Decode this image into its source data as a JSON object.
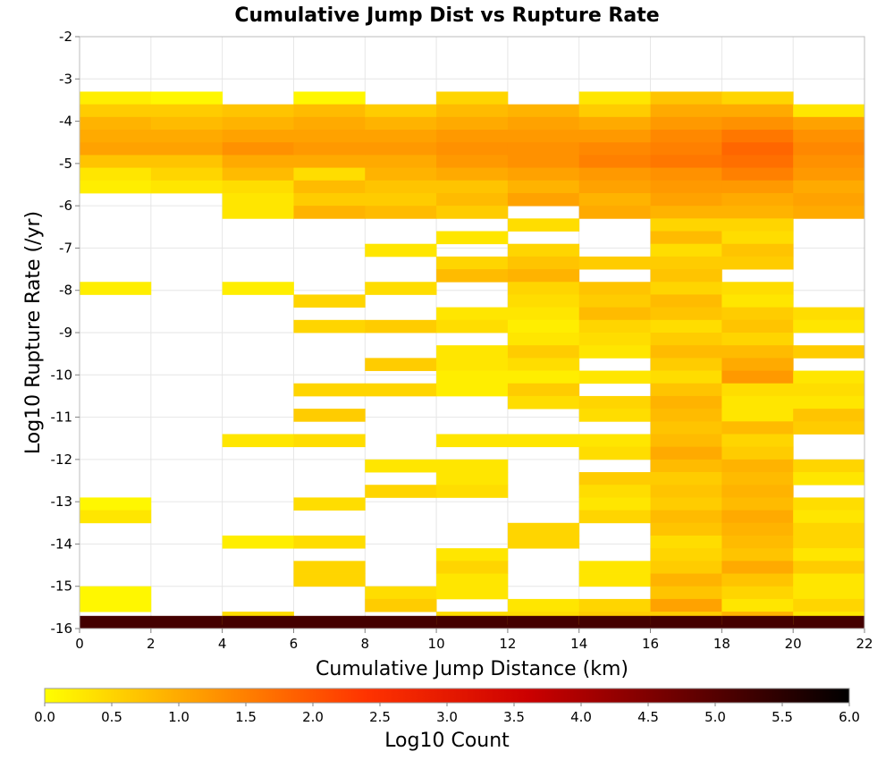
{
  "chart_data": {
    "type": "heatmap",
    "title": "Cumulative Jump Dist vs Rupture Rate",
    "xlabel": "Cumulative Jump Distance (km)",
    "ylabel": "Log10 Rupture Rate (/yr)",
    "xlim": [
      0,
      22
    ],
    "ylim": [
      -16,
      -2
    ],
    "x_ticks": [
      "0",
      "2",
      "4",
      "6",
      "8",
      "10",
      "12",
      "14",
      "16",
      "18",
      "20",
      "22"
    ],
    "y_ticks": [
      "-2",
      "-3",
      "-4",
      "-5",
      "-6",
      "-7",
      "-8",
      "-9",
      "-10",
      "-11",
      "-12",
      "-13",
      "-14",
      "-15",
      "-16"
    ],
    "grid": true,
    "x_bin_width": 2,
    "y_bin_height": 0.3,
    "colorbar": {
      "label": "Log10 Count",
      "range": [
        0,
        6
      ],
      "ticks": [
        "0.0",
        "0.5",
        "1.0",
        "1.5",
        "2.0",
        "2.5",
        "3.0",
        "3.5",
        "4.0",
        "4.5",
        "5.0",
        "5.5",
        "6.0"
      ],
      "colors": [
        "#ffff00",
        "#ff9900",
        "#ff3300",
        "#cc0000",
        "#660000",
        "#000000"
      ],
      "placement": "bottom"
    },
    "cells_note": "each row: x bin start (km), then list of [y bin bottom, log10 count]",
    "cells": [
      {
        "x": 0,
        "bins": [
          [
            -3.6,
            0.2
          ],
          [
            -3.9,
            0.6
          ],
          [
            -4.2,
            0.9
          ],
          [
            -4.5,
            1.0
          ],
          [
            -4.8,
            1.1
          ],
          [
            -5.1,
            0.7
          ],
          [
            -5.4,
            0.3
          ],
          [
            -5.7,
            0.2
          ],
          [
            -8.1,
            0.2
          ],
          [
            -13.2,
            0.1
          ],
          [
            -13.5,
            0.3
          ],
          [
            -15.3,
            0.1
          ],
          [
            -15.6,
            0.1
          ],
          [
            -16.0,
            5.2
          ]
        ]
      },
      {
        "x": 2,
        "bins": [
          [
            -3.6,
            0.1
          ],
          [
            -3.9,
            0.6
          ],
          [
            -4.2,
            0.8
          ],
          [
            -4.5,
            1.0
          ],
          [
            -4.8,
            1.1
          ],
          [
            -5.1,
            0.7
          ],
          [
            -5.4,
            0.5
          ],
          [
            -5.7,
            0.3
          ],
          [
            -16.0,
            5.2
          ]
        ]
      },
      {
        "x": 4,
        "bins": [
          [
            -3.9,
            0.7
          ],
          [
            -4.2,
            0.9
          ],
          [
            -4.5,
            1.1
          ],
          [
            -4.8,
            1.3
          ],
          [
            -5.1,
            1.0
          ],
          [
            -5.4,
            0.8
          ],
          [
            -5.7,
            0.4
          ],
          [
            -6.0,
            0.3
          ],
          [
            -6.3,
            0.3
          ],
          [
            -8.1,
            0.2
          ],
          [
            -11.7,
            0.3
          ],
          [
            -14.1,
            0.2
          ],
          [
            -15.9,
            0.4
          ],
          [
            -16.0,
            5.2
          ]
        ]
      },
      {
        "x": 6,
        "bins": [
          [
            -3.6,
            0.1
          ],
          [
            -3.9,
            0.8
          ],
          [
            -4.2,
            1.0
          ],
          [
            -4.5,
            1.1
          ],
          [
            -4.8,
            1.2
          ],
          [
            -5.1,
            1.0
          ],
          [
            -5.4,
            0.4
          ],
          [
            -5.7,
            0.8
          ],
          [
            -6.0,
            0.6
          ],
          [
            -6.3,
            0.9
          ],
          [
            -8.4,
            0.5
          ],
          [
            -9.0,
            0.5
          ],
          [
            -10.5,
            0.5
          ],
          [
            -11.1,
            0.6
          ],
          [
            -11.7,
            0.4
          ],
          [
            -13.2,
            0.4
          ],
          [
            -14.1,
            0.4
          ],
          [
            -14.7,
            0.5
          ],
          [
            -15.0,
            0.5
          ],
          [
            -16.0,
            5.2
          ]
        ]
      },
      {
        "x": 8,
        "bins": [
          [
            -3.9,
            0.6
          ],
          [
            -4.2,
            0.9
          ],
          [
            -4.5,
            1.1
          ],
          [
            -4.8,
            1.2
          ],
          [
            -5.1,
            1.0
          ],
          [
            -5.4,
            0.9
          ],
          [
            -5.7,
            0.7
          ],
          [
            -6.0,
            0.6
          ],
          [
            -6.3,
            0.8
          ],
          [
            -7.2,
            0.3
          ],
          [
            -8.1,
            0.4
          ],
          [
            -9.0,
            0.6
          ],
          [
            -9.9,
            0.6
          ],
          [
            -10.5,
            0.5
          ],
          [
            -12.3,
            0.3
          ],
          [
            -12.9,
            0.5
          ],
          [
            -15.3,
            0.4
          ],
          [
            -15.6,
            0.6
          ],
          [
            -16.0,
            5.2
          ]
        ]
      },
      {
        "x": 10,
        "bins": [
          [
            -3.6,
            0.5
          ],
          [
            -3.9,
            0.8
          ],
          [
            -4.2,
            1.0
          ],
          [
            -4.5,
            1.2
          ],
          [
            -4.8,
            1.3
          ],
          [
            -5.1,
            1.2
          ],
          [
            -5.4,
            1.0
          ],
          [
            -5.7,
            0.7
          ],
          [
            -6.0,
            0.8
          ],
          [
            -6.3,
            0.6
          ],
          [
            -6.9,
            0.3
          ],
          [
            -7.5,
            0.5
          ],
          [
            -7.8,
            0.8
          ],
          [
            -8.7,
            0.3
          ],
          [
            -9.0,
            0.4
          ],
          [
            -9.6,
            0.3
          ],
          [
            -9.9,
            0.3
          ],
          [
            -10.2,
            0.2
          ],
          [
            -10.5,
            0.2
          ],
          [
            -11.7,
            0.3
          ],
          [
            -12.3,
            0.3
          ],
          [
            -12.6,
            0.3
          ],
          [
            -12.9,
            0.4
          ],
          [
            -14.4,
            0.3
          ],
          [
            -14.7,
            0.5
          ],
          [
            -15.0,
            0.3
          ],
          [
            -15.3,
            0.3
          ],
          [
            -15.9,
            0.4
          ],
          [
            -16.0,
            5.2
          ]
        ]
      },
      {
        "x": 12,
        "bins": [
          [
            -3.9,
            0.9
          ],
          [
            -4.2,
            1.1
          ],
          [
            -4.5,
            1.2
          ],
          [
            -4.8,
            1.3
          ],
          [
            -5.1,
            1.3
          ],
          [
            -5.4,
            1.1
          ],
          [
            -5.7,
            0.9
          ],
          [
            -6.0,
            1.1
          ],
          [
            -6.6,
            0.4
          ],
          [
            -7.2,
            0.5
          ],
          [
            -7.5,
            0.7
          ],
          [
            -7.8,
            0.9
          ],
          [
            -8.1,
            0.5
          ],
          [
            -8.4,
            0.4
          ],
          [
            -8.7,
            0.3
          ],
          [
            -9.0,
            0.2
          ],
          [
            -9.3,
            0.3
          ],
          [
            -9.6,
            0.6
          ],
          [
            -9.9,
            0.4
          ],
          [
            -10.2,
            0.2
          ],
          [
            -10.5,
            0.6
          ],
          [
            -10.8,
            0.4
          ],
          [
            -11.7,
            0.3
          ],
          [
            -13.8,
            0.5
          ],
          [
            -14.1,
            0.5
          ],
          [
            -15.6,
            0.3
          ],
          [
            -15.9,
            0.4
          ],
          [
            -16.0,
            5.2
          ]
        ]
      },
      {
        "x": 14,
        "bins": [
          [
            -3.6,
            0.3
          ],
          [
            -3.9,
            0.6
          ],
          [
            -4.2,
            1.0
          ],
          [
            -4.5,
            1.2
          ],
          [
            -4.8,
            1.4
          ],
          [
            -5.1,
            1.5
          ],
          [
            -5.4,
            1.2
          ],
          [
            -5.7,
            1.1
          ],
          [
            -6.0,
            0.9
          ],
          [
            -6.3,
            1.0
          ],
          [
            -7.5,
            0.6
          ],
          [
            -8.1,
            0.7
          ],
          [
            -8.4,
            0.6
          ],
          [
            -8.7,
            0.8
          ],
          [
            -9.0,
            0.5
          ],
          [
            -9.3,
            0.4
          ],
          [
            -9.6,
            0.3
          ],
          [
            -10.2,
            0.3
          ],
          [
            -10.8,
            0.5
          ],
          [
            -11.1,
            0.4
          ],
          [
            -11.7,
            0.3
          ],
          [
            -12.0,
            0.4
          ],
          [
            -12.6,
            0.6
          ],
          [
            -12.9,
            0.4
          ],
          [
            -13.2,
            0.3
          ],
          [
            -13.5,
            0.5
          ],
          [
            -14.7,
            0.3
          ],
          [
            -15.0,
            0.3
          ],
          [
            -15.6,
            0.5
          ],
          [
            -15.9,
            0.6
          ],
          [
            -16.0,
            5.2
          ]
        ]
      },
      {
        "x": 16,
        "bins": [
          [
            -3.6,
            0.7
          ],
          [
            -3.9,
            1.0
          ],
          [
            -4.2,
            1.2
          ],
          [
            -4.5,
            1.4
          ],
          [
            -4.8,
            1.5
          ],
          [
            -5.1,
            1.6
          ],
          [
            -5.4,
            1.3
          ],
          [
            -5.7,
            1.2
          ],
          [
            -6.0,
            1.1
          ],
          [
            -6.3,
            0.9
          ],
          [
            -6.6,
            0.5
          ],
          [
            -6.9,
            0.8
          ],
          [
            -7.2,
            0.4
          ],
          [
            -7.5,
            0.6
          ],
          [
            -7.8,
            0.7
          ],
          [
            -8.1,
            0.5
          ],
          [
            -8.4,
            0.8
          ],
          [
            -8.7,
            0.7
          ],
          [
            -9.0,
            0.4
          ],
          [
            -9.3,
            0.6
          ],
          [
            -9.6,
            0.8
          ],
          [
            -9.9,
            0.6
          ],
          [
            -10.2,
            0.4
          ],
          [
            -10.5,
            0.7
          ],
          [
            -10.8,
            0.9
          ],
          [
            -11.1,
            0.8
          ],
          [
            -11.4,
            0.7
          ],
          [
            -11.7,
            0.8
          ],
          [
            -12.0,
            1.0
          ],
          [
            -12.3,
            0.8
          ],
          [
            -12.6,
            0.6
          ],
          [
            -12.9,
            0.7
          ],
          [
            -13.2,
            0.6
          ],
          [
            -13.5,
            0.8
          ],
          [
            -13.8,
            0.7
          ],
          [
            -14.1,
            0.4
          ],
          [
            -14.4,
            0.5
          ],
          [
            -14.7,
            0.6
          ],
          [
            -15.0,
            0.9
          ],
          [
            -15.3,
            0.7
          ],
          [
            -15.6,
            1.1
          ],
          [
            -15.9,
            0.6
          ],
          [
            -16.0,
            5.2
          ]
        ]
      },
      {
        "x": 18,
        "bins": [
          [
            -3.6,
            0.5
          ],
          [
            -3.9,
            1.0
          ],
          [
            -4.2,
            1.3
          ],
          [
            -4.5,
            1.6
          ],
          [
            -4.8,
            1.8
          ],
          [
            -5.1,
            1.7
          ],
          [
            -5.4,
            1.5
          ],
          [
            -5.7,
            1.2
          ],
          [
            -6.0,
            1.0
          ],
          [
            -6.3,
            0.9
          ],
          [
            -6.6,
            0.5
          ],
          [
            -6.9,
            0.4
          ],
          [
            -7.2,
            0.7
          ],
          [
            -7.5,
            0.6
          ],
          [
            -8.1,
            0.4
          ],
          [
            -8.4,
            0.3
          ],
          [
            -8.7,
            0.6
          ],
          [
            -9.0,
            0.7
          ],
          [
            -9.3,
            0.5
          ],
          [
            -9.6,
            0.8
          ],
          [
            -9.9,
            1.0
          ],
          [
            -10.2,
            1.2
          ],
          [
            -10.5,
            0.4
          ],
          [
            -10.8,
            0.3
          ],
          [
            -11.1,
            0.3
          ],
          [
            -11.4,
            0.8
          ],
          [
            -11.7,
            0.5
          ],
          [
            -12.0,
            0.6
          ],
          [
            -12.3,
            0.9
          ],
          [
            -12.6,
            0.8
          ],
          [
            -12.9,
            0.9
          ],
          [
            -13.2,
            0.8
          ],
          [
            -13.5,
            1.0
          ],
          [
            -13.8,
            0.9
          ],
          [
            -14.1,
            0.8
          ],
          [
            -14.4,
            0.7
          ],
          [
            -14.7,
            1.0
          ],
          [
            -15.0,
            0.7
          ],
          [
            -15.3,
            0.5
          ],
          [
            -15.6,
            0.3
          ],
          [
            -15.9,
            0.9
          ],
          [
            -16.0,
            5.2
          ]
        ]
      },
      {
        "x": 20,
        "bins": [
          [
            -3.9,
            0.3
          ],
          [
            -4.2,
            1.1
          ],
          [
            -4.5,
            1.3
          ],
          [
            -4.8,
            1.4
          ],
          [
            -5.1,
            1.3
          ],
          [
            -5.4,
            1.2
          ],
          [
            -5.7,
            1.0
          ],
          [
            -6.0,
            1.1
          ],
          [
            -6.3,
            1.0
          ],
          [
            -8.7,
            0.4
          ],
          [
            -9.0,
            0.3
          ],
          [
            -9.6,
            0.6
          ],
          [
            -10.2,
            0.3
          ],
          [
            -10.5,
            0.4
          ],
          [
            -10.8,
            0.3
          ],
          [
            -11.1,
            0.7
          ],
          [
            -11.4,
            0.6
          ],
          [
            -12.3,
            0.5
          ],
          [
            -12.6,
            0.3
          ],
          [
            -13.2,
            0.4
          ],
          [
            -13.5,
            0.3
          ],
          [
            -13.8,
            0.5
          ],
          [
            -14.1,
            0.5
          ],
          [
            -14.4,
            0.3
          ],
          [
            -14.7,
            0.6
          ],
          [
            -15.0,
            0.3
          ],
          [
            -15.3,
            0.3
          ],
          [
            -15.6,
            0.5
          ],
          [
            -15.9,
            0.3
          ],
          [
            -16.0,
            5.2
          ]
        ]
      }
    ]
  }
}
